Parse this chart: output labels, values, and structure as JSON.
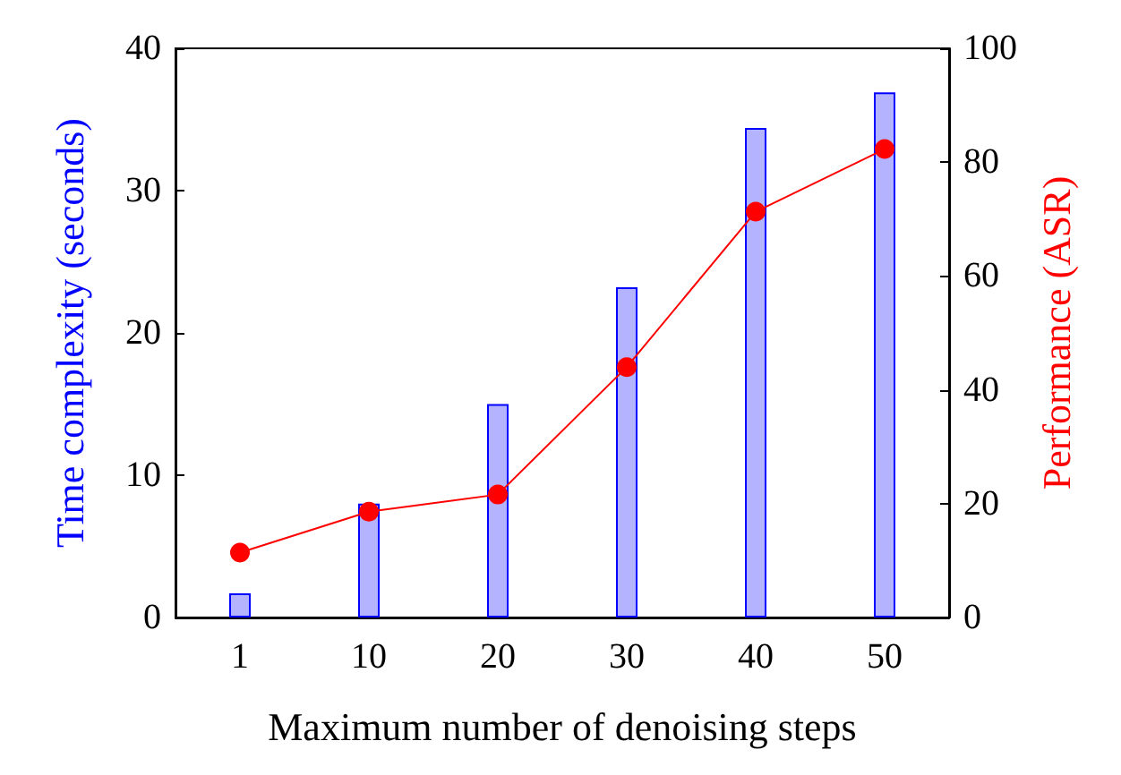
{
  "chart_data": {
    "type": "bar",
    "xlabel": "Maximum number of denoising steps",
    "ylabel": "Time complexity (seconds)",
    "y2label": "Performance (ASR)",
    "categories": [
      "1",
      "10",
      "20",
      "30",
      "40",
      "50"
    ],
    "series": [
      {
        "color": "#b3b3ff",
        "values": [
          1.7,
          8,
          15,
          23.2,
          34.4,
          36.9
        ]
      },
      {
        "type": "line",
        "axis": "y2",
        "color": "#ff0000",
        "values": [
          11.4,
          18.6,
          21.6,
          44,
          71.3,
          82.3
        ]
      }
    ],
    "ylim": [
      0,
      40
    ],
    "yticks": [
      0,
      10,
      20,
      30,
      40
    ],
    "y2lim": [
      0,
      100
    ],
    "y2ticks": [
      0,
      20,
      40,
      60,
      80,
      100
    ],
    "marker": "circle",
    "line_style": "solid",
    "grid": false
  }
}
